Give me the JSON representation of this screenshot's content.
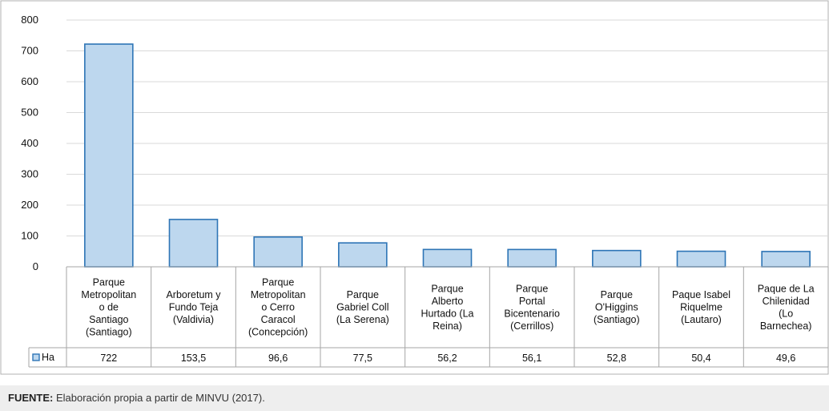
{
  "chart_data": {
    "type": "bar",
    "categories": [
      [
        "Parque",
        "Metropolitan",
        "o de",
        "Santiago",
        "(Santiago)"
      ],
      [
        "Arboretum y",
        "Fundo Teja",
        "(Valdivia)"
      ],
      [
        "Parque",
        "Metropolitan",
        "o Cerro",
        "Caracol",
        "(Concepción)"
      ],
      [
        "Parque",
        "Gabriel Coll",
        "(La Serena)"
      ],
      [
        "Parque",
        "Alberto",
        "Hurtado (La",
        "Reina)"
      ],
      [
        "Parque",
        "Portal",
        "Bicentenario",
        "(Cerrillos)"
      ],
      [
        "Parque",
        "O'Higgins",
        "(Santiago)"
      ],
      [
        "Paque Isabel",
        "Riquelme",
        "(Lautaro)"
      ],
      [
        "Paque de La",
        "Chilenidad",
        "(Lo",
        "Barnechea)"
      ]
    ],
    "series": [
      {
        "name": "Ha",
        "values": [
          722,
          153.5,
          96.6,
          77.5,
          56.2,
          56.1,
          52.8,
          50.4,
          49.6
        ]
      }
    ],
    "value_labels": [
      "722",
      "153,5",
      "96,6",
      "77,5",
      "56,2",
      "56,1",
      "52,8",
      "50,4",
      "49,6"
    ],
    "yticks": [
      "0",
      "100",
      "200",
      "300",
      "400",
      "500",
      "600",
      "700",
      "800"
    ],
    "ylim": [
      0,
      800
    ],
    "grid": true,
    "legend_placement": "data-table-left",
    "colors": {
      "bar_fill": "#bdd7ee",
      "bar_stroke": "#2e75b6",
      "grid": "#d9d9d9",
      "axis": "#a6a6a6"
    }
  },
  "footer": {
    "label": "FUENTE:",
    "text": " Elaboración propia a partir de MINVU (2017)."
  }
}
